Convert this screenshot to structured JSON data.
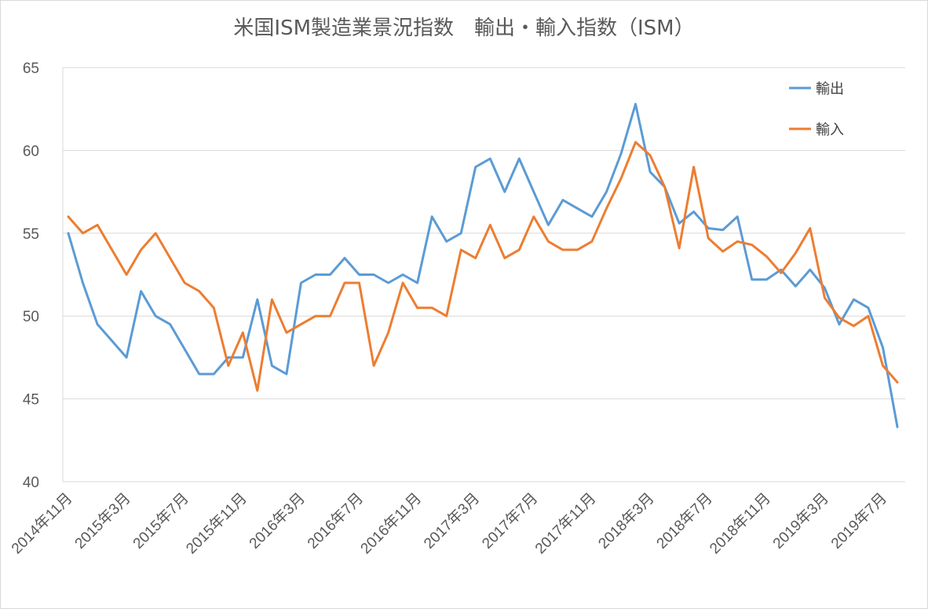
{
  "chart_data": {
    "type": "line",
    "title": "米国ISM製造業景況指数　輸出・輸入指数（ISM）",
    "xlabel": "",
    "ylabel": "",
    "ylim": [
      40,
      65
    ],
    "yticks": [
      40,
      45,
      50,
      55,
      60,
      65
    ],
    "grid": true,
    "legend_position": "top-right",
    "x": [
      "2014年11月",
      "2014年12月",
      "2015年1月",
      "2015年2月",
      "2015年3月",
      "2015年4月",
      "2015年5月",
      "2015年6月",
      "2015年7月",
      "2015年8月",
      "2015年9月",
      "2015年10月",
      "2015年11月",
      "2015年12月",
      "2016年1月",
      "2016年2月",
      "2016年3月",
      "2016年4月",
      "2016年5月",
      "2016年6月",
      "2016年7月",
      "2016年8月",
      "2016年9月",
      "2016年10月",
      "2016年11月",
      "2016年12月",
      "2017年1月",
      "2017年2月",
      "2017年3月",
      "2017年4月",
      "2017年5月",
      "2017年6月",
      "2017年7月",
      "2017年8月",
      "2017年9月",
      "2017年10月",
      "2017年11月",
      "2017年12月",
      "2018年1月",
      "2018年2月",
      "2018年3月",
      "2018年4月",
      "2018年5月",
      "2018年6月",
      "2018年7月",
      "2018年8月",
      "2018年9月",
      "2018年10月",
      "2018年11月",
      "2018年12月",
      "2019年1月",
      "2019年2月",
      "2019年3月",
      "2019年4月",
      "2019年5月",
      "2019年6月",
      "2019年7月",
      "2019年8月"
    ],
    "x_tick_labels": [
      "2014年11月",
      "2015年3月",
      "2015年7月",
      "2015年11月",
      "2016年3月",
      "2016年7月",
      "2016年11月",
      "2017年3月",
      "2017年7月",
      "2017年11月",
      "2018年3月",
      "2018年7月",
      "2018年11月",
      "2019年3月",
      "2019年7月"
    ],
    "series": [
      {
        "name": "輸出",
        "color": "#5b9bd5",
        "values": [
          55,
          52,
          49.5,
          48.5,
          47.5,
          51.5,
          50,
          49.5,
          48,
          46.5,
          46.5,
          47.5,
          47.5,
          51,
          47,
          46.5,
          52,
          52.5,
          52.5,
          53.5,
          52.5,
          52.5,
          52,
          52.5,
          52,
          56,
          54.5,
          55,
          59,
          59.5,
          57.5,
          59.5,
          57.5,
          55.5,
          57,
          56.5,
          56,
          57.5,
          59.8,
          62.8,
          58.7,
          57.8,
          55.6,
          56.3,
          55.3,
          55.2,
          56,
          52.2,
          52.2,
          52.8,
          51.8,
          52.8,
          51.7,
          49.5,
          51,
          50.5,
          48.1,
          43.3
        ]
      },
      {
        "name": "輸入",
        "color": "#ed7d31",
        "values": [
          56,
          55,
          55.5,
          54,
          52.5,
          54,
          55,
          53.5,
          52,
          51.5,
          50.5,
          47,
          49,
          45.5,
          51,
          49,
          49.5,
          50,
          50,
          52,
          52,
          47,
          49,
          52,
          50.5,
          50.5,
          50,
          54,
          53.5,
          55.5,
          53.5,
          54,
          56,
          54.5,
          54,
          54,
          54.5,
          56.5,
          58.3,
          60.5,
          59.7,
          57.8,
          54.1,
          59,
          54.7,
          53.9,
          54.5,
          54.3,
          53.6,
          52.6,
          53.8,
          55.3,
          51.1,
          49.9,
          49.4,
          50,
          47,
          46
        ]
      }
    ]
  }
}
